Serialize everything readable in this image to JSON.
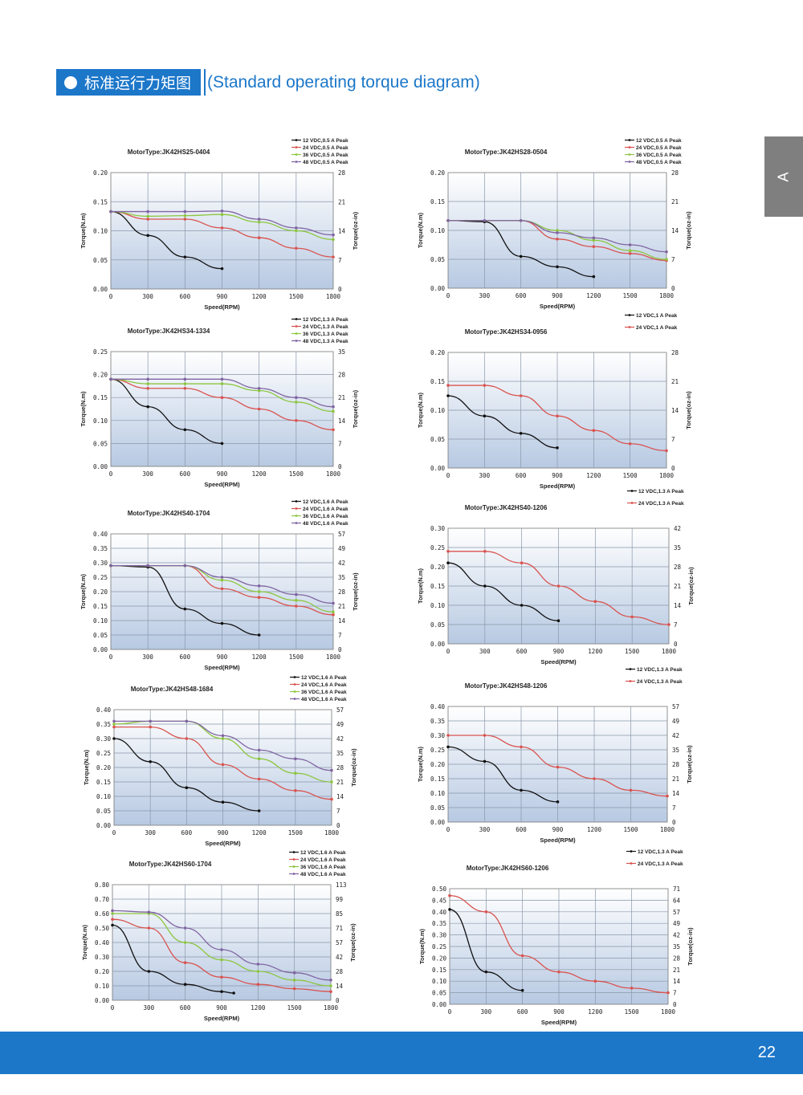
{
  "header": {
    "title_cn": "标准运行力矩图",
    "title_en": "(Standard operating torque diagram)"
  },
  "side_tab": {
    "label": "A"
  },
  "footer": {
    "page_number": "22"
  },
  "colors": {
    "brand_blue": "#1c77c9",
    "series": [
      "#111111",
      "#d9534f",
      "#8cc63f",
      "#8064a2"
    ]
  },
  "chart_data": [
    {
      "type": "line",
      "title": "MotorType:JK42HS25-0404",
      "xlabel": "Speed(RPM)",
      "ylabel": "Torque(N.m)",
      "y2label": "Torque(oz-in)",
      "x_ticks": [
        "0",
        "300",
        "600",
        "900",
        "1200",
        "1500",
        "1800"
      ],
      "y_ticks": [
        "0.00",
        "0.05",
        "0.10",
        "0.15",
        "0.20"
      ],
      "y2_ticks": [
        "0",
        "7",
        "14",
        "21",
        "28"
      ],
      "xlim": [
        0,
        1800
      ],
      "ylim": [
        0,
        0.2
      ],
      "series": [
        {
          "name": "12 VDC,0.5 A Peak",
          "x": [
            0,
            300,
            600,
            900
          ],
          "y": [
            0.133,
            0.092,
            0.055,
            0.035
          ]
        },
        {
          "name": "24 VDC,0.5 A Peak",
          "x": [
            0,
            300,
            600,
            900,
            1200,
            1500,
            1800
          ],
          "y": [
            0.133,
            0.12,
            0.12,
            0.105,
            0.088,
            0.07,
            0.055
          ]
        },
        {
          "name": "36 VDC,0.5 A Peak",
          "x": [
            0,
            300,
            600,
            900,
            1200,
            1500,
            1800
          ],
          "y": [
            0.133,
            0.125,
            0.126,
            0.128,
            0.115,
            0.1,
            0.085
          ]
        },
        {
          "name": "48 VDC,0.5 A Peak",
          "x": [
            0,
            300,
            600,
            900,
            1200,
            1500,
            1800
          ],
          "y": [
            0.133,
            0.133,
            0.133,
            0.134,
            0.12,
            0.105,
            0.093
          ]
        }
      ]
    },
    {
      "type": "line",
      "title": "MotorType:JK42HS28-0504",
      "xlabel": "Speed(RPM)",
      "ylabel": "Torque(N.m)",
      "y2label": "Torque(oz-in)",
      "x_ticks": [
        "0",
        "300",
        "600",
        "900",
        "1200",
        "1500",
        "1800"
      ],
      "y_ticks": [
        "0.00",
        "0.05",
        "0.10",
        "0.15",
        "0.20"
      ],
      "y2_ticks": [
        "0",
        "7",
        "14",
        "21",
        "28"
      ],
      "xlim": [
        0,
        1800
      ],
      "ylim": [
        0,
        0.2
      ],
      "series": [
        {
          "name": "12 VDC,0.5 A Peak",
          "x": [
            0,
            300,
            600,
            900,
            1200
          ],
          "y": [
            0.117,
            0.115,
            0.055,
            0.037,
            0.02
          ]
        },
        {
          "name": "24 VDC,0.5 A Peak",
          "x": [
            0,
            300,
            600,
            900,
            1200,
            1500,
            1800
          ],
          "y": [
            0.117,
            0.117,
            0.117,
            0.085,
            0.072,
            0.06,
            0.048
          ]
        },
        {
          "name": "36 VDC,0.5 A Peak",
          "x": [
            0,
            300,
            600,
            900,
            1200,
            1500,
            1800
          ],
          "y": [
            0.117,
            0.117,
            0.117,
            0.1,
            0.083,
            0.065,
            0.05
          ]
        },
        {
          "name": "48 VDC,0.5 A Peak",
          "x": [
            0,
            300,
            600,
            900,
            1200,
            1500,
            1800
          ],
          "y": [
            0.117,
            0.117,
            0.117,
            0.096,
            0.087,
            0.075,
            0.063
          ]
        }
      ]
    },
    {
      "type": "line",
      "title": "MotorType:JK42HS34-1334",
      "xlabel": "Speed(RPM)",
      "ylabel": "Torque(N.m)",
      "y2label": "Torque(oz-in)",
      "x_ticks": [
        "0",
        "300",
        "600",
        "900",
        "1200",
        "1500",
        "1800"
      ],
      "y_ticks": [
        "0.00",
        "0.05",
        "0.10",
        "0.15",
        "0.20",
        "0.25"
      ],
      "y2_ticks": [
        "0",
        "7",
        "14",
        "21",
        "28",
        "35"
      ],
      "xlim": [
        0,
        1800
      ],
      "ylim": [
        0,
        0.25
      ],
      "series": [
        {
          "name": "12 VDC,1.3 A Peak",
          "x": [
            0,
            300,
            600,
            900
          ],
          "y": [
            0.19,
            0.13,
            0.08,
            0.05
          ]
        },
        {
          "name": "24 VDC,1.3 A Peak",
          "x": [
            0,
            300,
            600,
            900,
            1200,
            1500,
            1800
          ],
          "y": [
            0.19,
            0.17,
            0.17,
            0.15,
            0.125,
            0.1,
            0.08
          ]
        },
        {
          "name": "36 VDC,1.3 A Peak",
          "x": [
            0,
            300,
            600,
            900,
            1200,
            1500,
            1800
          ],
          "y": [
            0.19,
            0.18,
            0.18,
            0.18,
            0.165,
            0.14,
            0.12
          ]
        },
        {
          "name": "48 VDC,1.3 A Peak",
          "x": [
            0,
            300,
            600,
            900,
            1200,
            1500,
            1800
          ],
          "y": [
            0.19,
            0.19,
            0.19,
            0.19,
            0.17,
            0.15,
            0.13
          ]
        }
      ]
    },
    {
      "type": "line",
      "title": "MotorType:JK42HS34-0956",
      "xlabel": "Speed(RPM)",
      "ylabel": "Torque(N.m)",
      "y2label": "Torque(oz-in)",
      "x_ticks": [
        "0",
        "300",
        "600",
        "900",
        "1200",
        "1500",
        "1800"
      ],
      "y_ticks": [
        "0.00",
        "0.05",
        "0.10",
        "0.15",
        "0.20"
      ],
      "y2_ticks": [
        "0",
        "7",
        "14",
        "21",
        "28"
      ],
      "xlim": [
        0,
        1800
      ],
      "ylim": [
        0,
        0.2
      ],
      "series": [
        {
          "name": "12 VDC,1 A Peak",
          "x": [
            0,
            300,
            600,
            900
          ],
          "y": [
            0.125,
            0.09,
            0.06,
            0.035
          ]
        },
        {
          "name": "24 VDC,1 A Peak",
          "x": [
            0,
            300,
            600,
            900,
            1200,
            1500,
            1800
          ],
          "y": [
            0.143,
            0.143,
            0.125,
            0.09,
            0.065,
            0.042,
            0.03
          ]
        }
      ]
    },
    {
      "type": "line",
      "title": "MotorType:JK42HS40-1704",
      "xlabel": "Speed(RPM)",
      "ylabel": "Torque(N.m)",
      "y2label": "Torque(oz-in)",
      "x_ticks": [
        "0",
        "300",
        "600",
        "900",
        "1200",
        "1500",
        "1800"
      ],
      "y_ticks": [
        "0.00",
        "0.05",
        "0.10",
        "0.15",
        "0.20",
        "0.25",
        "0.30",
        "0.35",
        "0.40"
      ],
      "y2_ticks": [
        "0",
        "7",
        "14",
        "21",
        "28",
        "35",
        "42",
        "49",
        "57"
      ],
      "xlim": [
        0,
        1800
      ],
      "ylim": [
        0,
        0.4
      ],
      "series": [
        {
          "name": "12 VDC,1.6 A Peak",
          "x": [
            0,
            300,
            600,
            900,
            1200
          ],
          "y": [
            0.29,
            0.285,
            0.14,
            0.09,
            0.05
          ]
        },
        {
          "name": "24 VDC,1.6 A Peak",
          "x": [
            0,
            300,
            600,
            900,
            1200,
            1500,
            1800
          ],
          "y": [
            0.29,
            0.29,
            0.29,
            0.21,
            0.18,
            0.15,
            0.12
          ]
        },
        {
          "name": "36 VDC,1.6 A Peak",
          "x": [
            0,
            300,
            600,
            900,
            1200,
            1500,
            1800
          ],
          "y": [
            0.29,
            0.29,
            0.29,
            0.24,
            0.2,
            0.17,
            0.13
          ]
        },
        {
          "name": "48 VDC,1.6 A Peak",
          "x": [
            0,
            300,
            600,
            900,
            1200,
            1500,
            1800
          ],
          "y": [
            0.29,
            0.29,
            0.29,
            0.25,
            0.22,
            0.19,
            0.16
          ]
        }
      ]
    },
    {
      "type": "line",
      "title": "MotorType:JK42HS40-1206",
      "xlabel": "Speed(RPM)",
      "ylabel": "Torque(N.m)",
      "y2label": "Torque(oz-in)",
      "x_ticks": [
        "0",
        "300",
        "600",
        "900",
        "1200",
        "1500",
        "1800"
      ],
      "y_ticks": [
        "0.00",
        "0.05",
        "0.10",
        "0.15",
        "0.20",
        "0.25",
        "0.30"
      ],
      "y2_ticks": [
        "0",
        "7",
        "14",
        "21",
        "28",
        "35",
        "42"
      ],
      "xlim": [
        0,
        1800
      ],
      "ylim": [
        0,
        0.3
      ],
      "series": [
        {
          "name": "12 VDC,1.3 A Peak",
          "x": [
            0,
            300,
            600,
            900
          ],
          "y": [
            0.21,
            0.15,
            0.1,
            0.06
          ]
        },
        {
          "name": "24 VDC,1.3 A Peak",
          "x": [
            0,
            300,
            600,
            900,
            1200,
            1500,
            1800
          ],
          "y": [
            0.24,
            0.24,
            0.21,
            0.15,
            0.11,
            0.07,
            0.05
          ]
        }
      ]
    },
    {
      "type": "line",
      "title": "MotorType:JK42HS48-1684",
      "xlabel": "Speed(RPM)",
      "ylabel": "Torque(N.m)",
      "y2label": "Torque(oz-in)",
      "x_ticks": [
        "0",
        "300",
        "600",
        "900",
        "1200",
        "1500",
        "1800"
      ],
      "y_ticks": [
        "0.00",
        "0.05",
        "0.10",
        "0.15",
        "0.20",
        "0.25",
        "0.30",
        "0.35",
        "0.40"
      ],
      "y2_ticks": [
        "0",
        "7",
        "14",
        "21",
        "28",
        "35",
        "42",
        "49",
        "57"
      ],
      "xlim": [
        0,
        1800
      ],
      "ylim": [
        0,
        0.4
      ],
      "series": [
        {
          "name": "12 VDC,1.6 A Peak",
          "x": [
            0,
            300,
            600,
            900,
            1200
          ],
          "y": [
            0.3,
            0.22,
            0.13,
            0.08,
            0.05
          ]
        },
        {
          "name": "24 VDC,1.6 A Peak",
          "x": [
            0,
            300,
            600,
            900,
            1200,
            1500,
            1800
          ],
          "y": [
            0.34,
            0.34,
            0.3,
            0.21,
            0.16,
            0.12,
            0.09
          ]
        },
        {
          "name": "36 VDC,1.6 A Peak",
          "x": [
            0,
            300,
            600,
            900,
            1200,
            1500,
            1800
          ],
          "y": [
            0.35,
            0.36,
            0.36,
            0.3,
            0.23,
            0.18,
            0.15
          ]
        },
        {
          "name": "48 VDC,1.6 A Peak",
          "x": [
            0,
            300,
            600,
            900,
            1200,
            1500,
            1800
          ],
          "y": [
            0.36,
            0.36,
            0.36,
            0.31,
            0.26,
            0.23,
            0.19
          ]
        }
      ]
    },
    {
      "type": "line",
      "title": "MotorType:JK42HS48-1206",
      "xlabel": "Speed(RPM)",
      "ylabel": "Torque(N.m)",
      "y2label": "Torque(oz-in)",
      "x_ticks": [
        "0",
        "300",
        "600",
        "900",
        "1200",
        "1500",
        "1800"
      ],
      "y_ticks": [
        "0.00",
        "0.05",
        "0.10",
        "0.15",
        "0.20",
        "0.25",
        "0.30",
        "0.35",
        "0.40"
      ],
      "y2_ticks": [
        "0",
        "7",
        "14",
        "21",
        "28",
        "35",
        "42",
        "49",
        "57"
      ],
      "xlim": [
        0,
        1800
      ],
      "ylim": [
        0,
        0.4
      ],
      "series": [
        {
          "name": "12 VDC,1.3 A Peak",
          "x": [
            0,
            300,
            600,
            900
          ],
          "y": [
            0.26,
            0.21,
            0.11,
            0.07
          ]
        },
        {
          "name": "24 VDC,1.3 A Peak",
          "x": [
            0,
            300,
            600,
            900,
            1200,
            1500,
            1800
          ],
          "y": [
            0.3,
            0.3,
            0.26,
            0.19,
            0.15,
            0.11,
            0.09
          ]
        }
      ]
    },
    {
      "type": "line",
      "title": "MotorType:JK42HS60-1704",
      "xlabel": "Speed(RPM)",
      "ylabel": "Torque(N.m)",
      "y2label": "Torque(oz-in)",
      "x_ticks": [
        "0",
        "300",
        "600",
        "900",
        "1200",
        "1500",
        "1800"
      ],
      "y_ticks": [
        "0.00",
        "0.10",
        "0.20",
        "0.30",
        "0.40",
        "0.50",
        "0.60",
        "0.70",
        "0.80"
      ],
      "y2_ticks": [
        "0",
        "14",
        "28",
        "42",
        "57",
        "71",
        "85",
        "99",
        "113"
      ],
      "xlim": [
        0,
        1800
      ],
      "ylim": [
        0,
        0.8
      ],
      "series": [
        {
          "name": "12 VDC,1.6 A Peak",
          "x": [
            0,
            300,
            600,
            900,
            1000
          ],
          "y": [
            0.52,
            0.2,
            0.11,
            0.06,
            0.05
          ]
        },
        {
          "name": "24 VDC,1.6 A Peak",
          "x": [
            0,
            300,
            600,
            900,
            1200,
            1500,
            1800
          ],
          "y": [
            0.56,
            0.5,
            0.26,
            0.16,
            0.11,
            0.08,
            0.06
          ]
        },
        {
          "name": "36 VDC,1.6 A Peak",
          "x": [
            0,
            300,
            600,
            900,
            1200,
            1500,
            1800
          ],
          "y": [
            0.6,
            0.6,
            0.4,
            0.28,
            0.2,
            0.14,
            0.1
          ]
        },
        {
          "name": "48 VDC,1.6 A Peak",
          "x": [
            0,
            300,
            600,
            900,
            1200,
            1500,
            1800
          ],
          "y": [
            0.62,
            0.61,
            0.5,
            0.35,
            0.25,
            0.19,
            0.14
          ]
        }
      ]
    },
    {
      "type": "line",
      "title": "MotorType:JK42HS60-1206",
      "xlabel": "Speed(RPM)",
      "ylabel": "Torque(N.m)",
      "y2label": "Torque(oz-in)",
      "x_ticks": [
        "0",
        "300",
        "600",
        "900",
        "1200",
        "1500",
        "1800"
      ],
      "y_ticks": [
        "0.00",
        "0.05",
        "0.10",
        "0.15",
        "0.20",
        "0.25",
        "0.30",
        "0.35",
        "0.40",
        "0.45",
        "0.50"
      ],
      "y2_ticks": [
        "0",
        "7",
        "14",
        "21",
        "28",
        "35",
        "42",
        "49",
        "57",
        "64",
        "71"
      ],
      "xlim": [
        0,
        1800
      ],
      "ylim": [
        0,
        0.5
      ],
      "series": [
        {
          "name": "12 VDC,1.3 A Peak",
          "x": [
            0,
            300,
            600
          ],
          "y": [
            0.41,
            0.14,
            0.06
          ]
        },
        {
          "name": "24 VDC,1.3 A Peak",
          "x": [
            0,
            300,
            600,
            900,
            1200,
            1500,
            1800
          ],
          "y": [
            0.47,
            0.4,
            0.21,
            0.14,
            0.1,
            0.07,
            0.05
          ]
        }
      ]
    }
  ]
}
